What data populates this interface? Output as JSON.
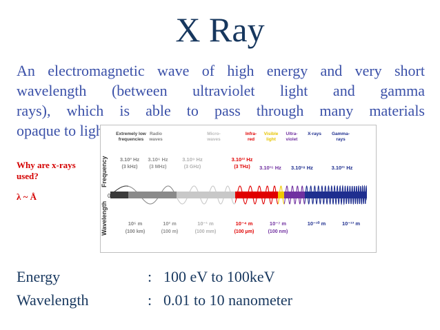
{
  "slide": {
    "title": "X Ray",
    "intro_lines": [
      "An electromagnetic wave of high energy and very short",
      "wavelength (between ultraviolet light and gamma",
      "rays), which is able to pass through many materials",
      "opaque to light."
    ],
    "question": "Why are x-rays used?",
    "lambda_note": "λ ~ Å",
    "properties": [
      {
        "label": "Energy",
        "sep": ":",
        "value": "100 eV to 100keV"
      },
      {
        "label": "Wavelength",
        "sep": ":",
        "value": "0.01 to 10 nanometer"
      }
    ]
  },
  "spectrum": {
    "axis_frequency": "Frequency",
    "axis_wavelength": "Wavelength",
    "axis_zero": "0",
    "bands": [
      {
        "name": "Extremely low frequencies",
        "line1": "Extremely low",
        "line2": "frequencies",
        "color": "#404040"
      },
      {
        "name": "Radio waves",
        "line1": "Radio",
        "line2": "waves",
        "color": "#808080"
      },
      {
        "name": "Micro-waves",
        "line1": "Micro-",
        "line2": "waves",
        "color": "#b8b8b8"
      },
      {
        "name": "Infra-red",
        "line1": "Infra-",
        "line2": "red",
        "color": "#e00000"
      },
      {
        "name": "Visible light",
        "line1": "Visible",
        "line2": "light",
        "color": "#e6c400"
      },
      {
        "name": "Ultra-violet",
        "line1": "Ultra-",
        "line2": "violet",
        "color": "#7030a0"
      },
      {
        "name": "X-rays",
        "line1": "X-rays",
        "line2": "",
        "color": "#1f2f8f"
      },
      {
        "name": "Gamma-rays",
        "line1": "Gamma-",
        "line2": "rays",
        "color": "#1f2f8f"
      }
    ],
    "frequencies": [
      {
        "main": "3.10³ Hz",
        "sub": "(3 kHz)",
        "color": "#808080"
      },
      {
        "main": "3.10⁶ Hz",
        "sub": "(3 MHz)",
        "color": "#909090"
      },
      {
        "main": "3.10⁹ Hz",
        "sub": "(3 GHz)",
        "color": "#b0b0b0"
      },
      {
        "main": "3.10¹² Hz",
        "sub": "(3 THz)",
        "color": "#e00000"
      },
      {
        "main": "3.10¹⁵ Hz",
        "sub": "",
        "color": "#7030a0"
      },
      {
        "main": "3.10¹⁸ Hz",
        "sub": "",
        "color": "#1f2f8f"
      },
      {
        "main": "3.10²¹ Hz",
        "sub": "",
        "color": "#1f2f8f"
      }
    ],
    "wavelengths": [
      {
        "main": "10⁵ m",
        "sub": "(100 km)",
        "color": "#808080"
      },
      {
        "main": "10² m",
        "sub": "(100 m)",
        "color": "#909090"
      },
      {
        "main": "10⁻¹ m",
        "sub": "(100 mm)",
        "color": "#b0b0b0"
      },
      {
        "main": "10⁻⁴ m",
        "sub": "(100 μm)",
        "color": "#e00000"
      },
      {
        "main": "10⁻⁷ m",
        "sub": "(100 nm)",
        "color": "#7030a0"
      },
      {
        "main": "10⁻¹⁰ m",
        "sub": "",
        "color": "#1f2f8f"
      },
      {
        "main": "10⁻¹³ m",
        "sub": "",
        "color": "#1f2f8f"
      }
    ]
  }
}
